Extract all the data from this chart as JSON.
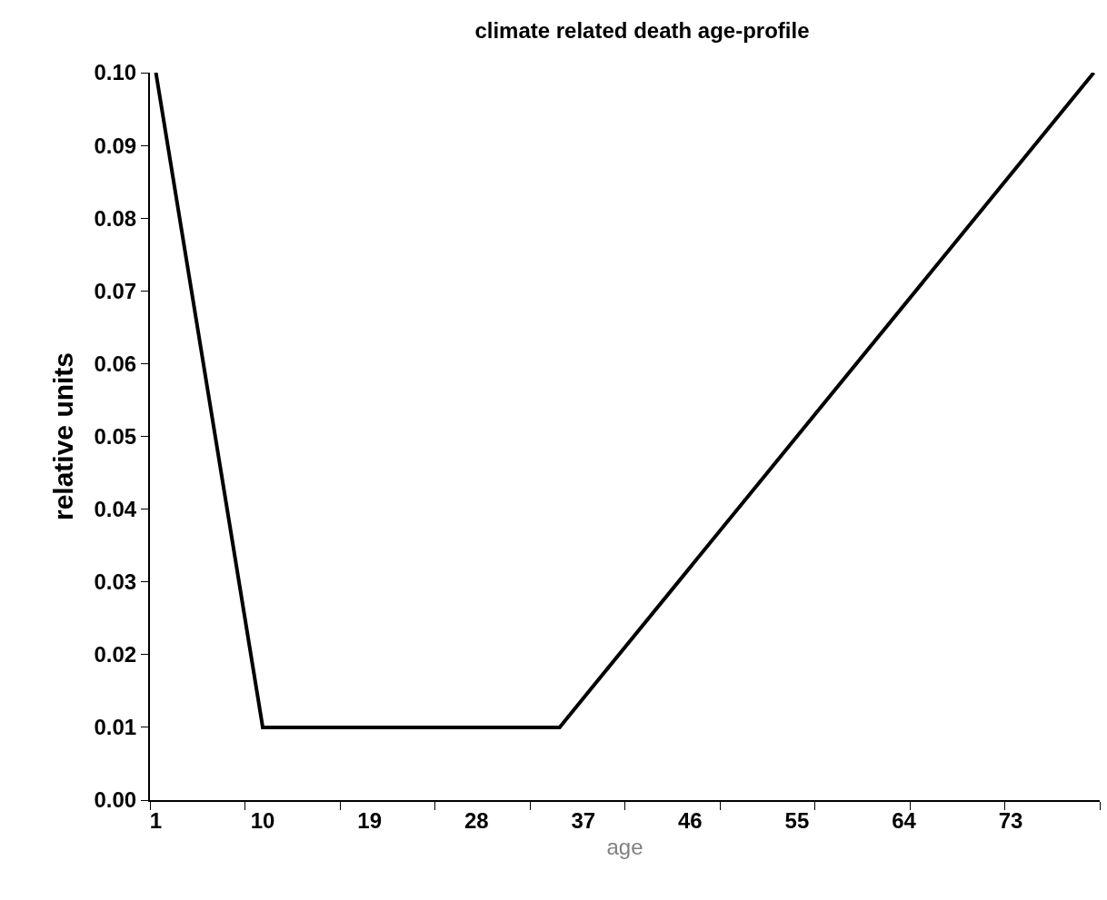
{
  "chart_data": {
    "type": "line",
    "title": "climate related death age-profile",
    "xlabel": "age",
    "ylabel": "relative units",
    "x": [
      1,
      10,
      35,
      80
    ],
    "series": [
      {
        "color": "#000000",
        "values": [
          0.1,
          0.01,
          0.01,
          0.1
        ]
      }
    ],
    "xlim": [
      0.5,
      80.5
    ],
    "xticks": [
      {
        "value": 1,
        "label": "1"
      },
      {
        "value": 10,
        "label": "10"
      },
      {
        "value": 19,
        "label": "19"
      },
      {
        "value": 28,
        "label": "28"
      },
      {
        "value": 37,
        "label": "37"
      },
      {
        "value": 46,
        "label": "46"
      },
      {
        "value": 55,
        "label": "55"
      },
      {
        "value": 64,
        "label": "64"
      },
      {
        "value": 73,
        "label": "73"
      },
      {
        "value": 0.5,
        "label": null
      },
      {
        "value": 8.5,
        "label": null
      },
      {
        "value": 16.5,
        "label": null
      },
      {
        "value": 24.5,
        "label": null
      },
      {
        "value": 32.5,
        "label": null
      },
      {
        "value": 40.5,
        "label": null
      },
      {
        "value": 48.5,
        "label": null
      },
      {
        "value": 56.5,
        "label": null
      },
      {
        "value": 64.5,
        "label": null
      },
      {
        "value": 72.5,
        "label": null
      },
      {
        "value": 80.5,
        "label": null
      }
    ],
    "ylim": [
      0,
      0.1
    ],
    "yticks": [
      {
        "value": 0,
        "label": "0.00"
      },
      {
        "value": 0.01,
        "label": "0.01"
      },
      {
        "value": 0.02,
        "label": "0.02"
      },
      {
        "value": 0.03,
        "label": "0.03"
      },
      {
        "value": 0.04,
        "label": "0.04"
      },
      {
        "value": 0.05,
        "label": "0.05"
      },
      {
        "value": 0.06,
        "label": "0.06"
      },
      {
        "value": 0.07,
        "label": "0.07"
      },
      {
        "value": 0.08,
        "label": "0.08"
      },
      {
        "value": 0.09,
        "label": "0.09"
      },
      {
        "value": 0.1,
        "label": "0.10"
      }
    ],
    "marker": "none",
    "line_style": "solid"
  }
}
